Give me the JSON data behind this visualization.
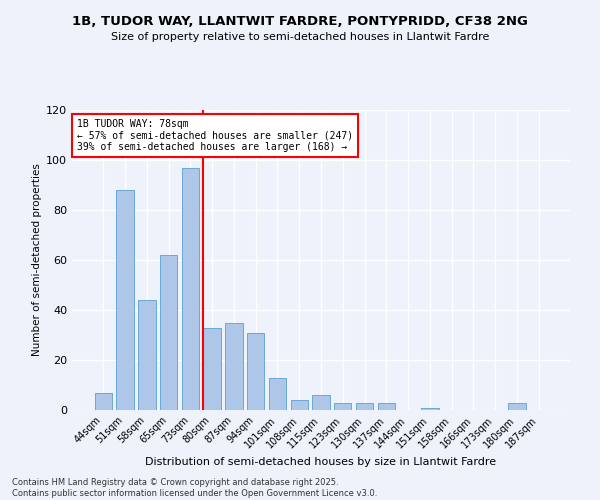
{
  "title": "1B, TUDOR WAY, LLANTWIT FARDRE, PONTYPRIDD, CF38 2NG",
  "subtitle": "Size of property relative to semi-detached houses in Llantwit Fardre",
  "xlabel": "Distribution of semi-detached houses by size in Llantwit Fardre",
  "ylabel": "Number of semi-detached properties",
  "categories": [
    "44sqm",
    "51sqm",
    "58sqm",
    "65sqm",
    "73sqm",
    "80sqm",
    "87sqm",
    "94sqm",
    "101sqm",
    "108sqm",
    "115sqm",
    "123sqm",
    "130sqm",
    "137sqm",
    "144sqm",
    "151sqm",
    "158sqm",
    "166sqm",
    "173sqm",
    "180sqm",
    "187sqm"
  ],
  "values": [
    7,
    88,
    44,
    62,
    97,
    33,
    35,
    31,
    13,
    4,
    6,
    3,
    3,
    3,
    0,
    1,
    0,
    0,
    0,
    3,
    0
  ],
  "bar_color": "#aec6e8",
  "bar_edge_color": "#5a9fd4",
  "vline_index": 5,
  "vline_color": "red",
  "annotation_title": "1B TUDOR WAY: 78sqm",
  "annotation_line1": "← 57% of semi-detached houses are smaller (247)",
  "annotation_line2": "39% of semi-detached houses are larger (168) →",
  "annotation_box_color": "white",
  "annotation_box_edge": "red",
  "ylim": [
    0,
    120
  ],
  "yticks": [
    0,
    20,
    40,
    60,
    80,
    100,
    120
  ],
  "footer_line1": "Contains HM Land Registry data © Crown copyright and database right 2025.",
  "footer_line2": "Contains public sector information licensed under the Open Government Licence v3.0.",
  "bg_color": "#eef2fa",
  "grid_color": "white"
}
